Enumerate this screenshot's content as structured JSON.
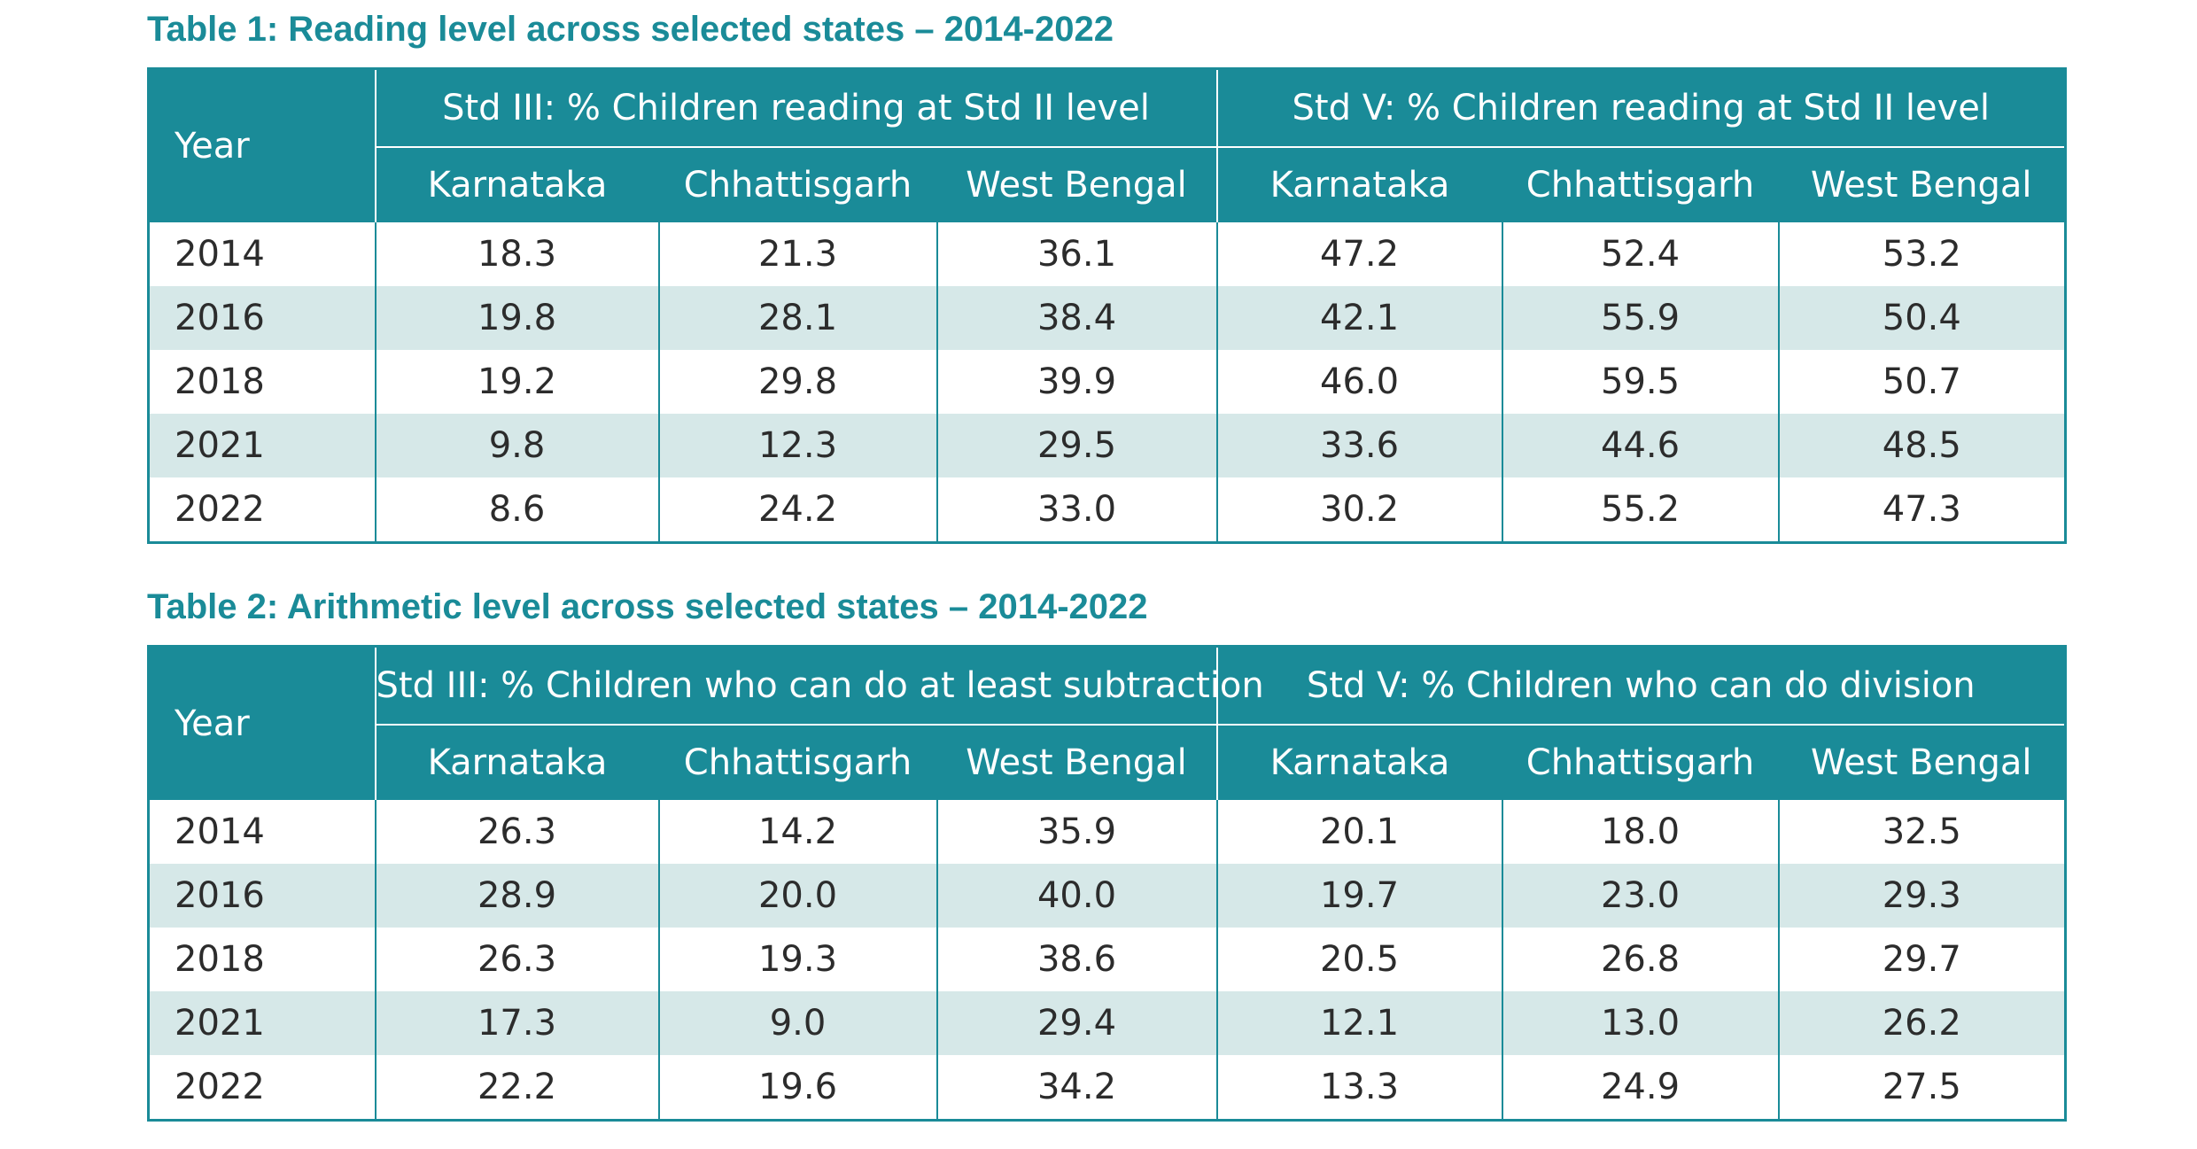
{
  "tables": [
    {
      "title": "Table 1: Reading level across selected states – 2014-2022",
      "year_header": "Year",
      "group_headers": [
        "Std III: % Children reading at Std II level",
        "Std V: % Children reading at Std II level"
      ],
      "state_headers": [
        "Karnataka",
        "Chhattisgarh",
        "West Bengal",
        "Karnataka",
        "Chhattisgarh",
        "West Bengal"
      ],
      "rows": [
        {
          "year": "2014",
          "values": [
            "18.3",
            "21.3",
            "36.1",
            "47.2",
            "52.4",
            "53.2"
          ]
        },
        {
          "year": "2016",
          "values": [
            "19.8",
            "28.1",
            "38.4",
            "42.1",
            "55.9",
            "50.4"
          ]
        },
        {
          "year": "2018",
          "values": [
            "19.2",
            "29.8",
            "39.9",
            "46.0",
            "59.5",
            "50.7"
          ]
        },
        {
          "year": "2021",
          "values": [
            "9.8",
            "12.3",
            "29.5",
            "33.6",
            "44.6",
            "48.5"
          ]
        },
        {
          "year": "2022",
          "values": [
            "8.6",
            "24.2",
            "33.0",
            "30.2",
            "55.2",
            "47.3"
          ]
        }
      ]
    },
    {
      "title": "Table 2: Arithmetic level across selected states – 2014-2022",
      "year_header": "Year",
      "group_headers": [
        "Std III: % Children who can do at least subtraction",
        "Std V: % Children who can do division"
      ],
      "state_headers": [
        "Karnataka",
        "Chhattisgarh",
        "West Bengal",
        "Karnataka",
        "Chhattisgarh",
        "West Bengal"
      ],
      "rows": [
        {
          "year": "2014",
          "values": [
            "26.3",
            "14.2",
            "35.9",
            "20.1",
            "18.0",
            "32.5"
          ]
        },
        {
          "year": "2016",
          "values": [
            "28.9",
            "20.0",
            "40.0",
            "19.7",
            "23.0",
            "29.3"
          ]
        },
        {
          "year": "2018",
          "values": [
            "26.3",
            "19.3",
            "38.6",
            "20.5",
            "26.8",
            "29.7"
          ]
        },
        {
          "year": "2021",
          "values": [
            "17.3",
            "9.0",
            "29.4",
            "12.1",
            "13.0",
            "26.2"
          ]
        },
        {
          "year": "2022",
          "values": [
            "22.2",
            "19.6",
            "34.2",
            "13.3",
            "24.9",
            "27.5"
          ]
        }
      ]
    }
  ],
  "colors": {
    "accent": "#1a8b98",
    "band": "#d6e8e8",
    "text": "#2c2c2c"
  }
}
